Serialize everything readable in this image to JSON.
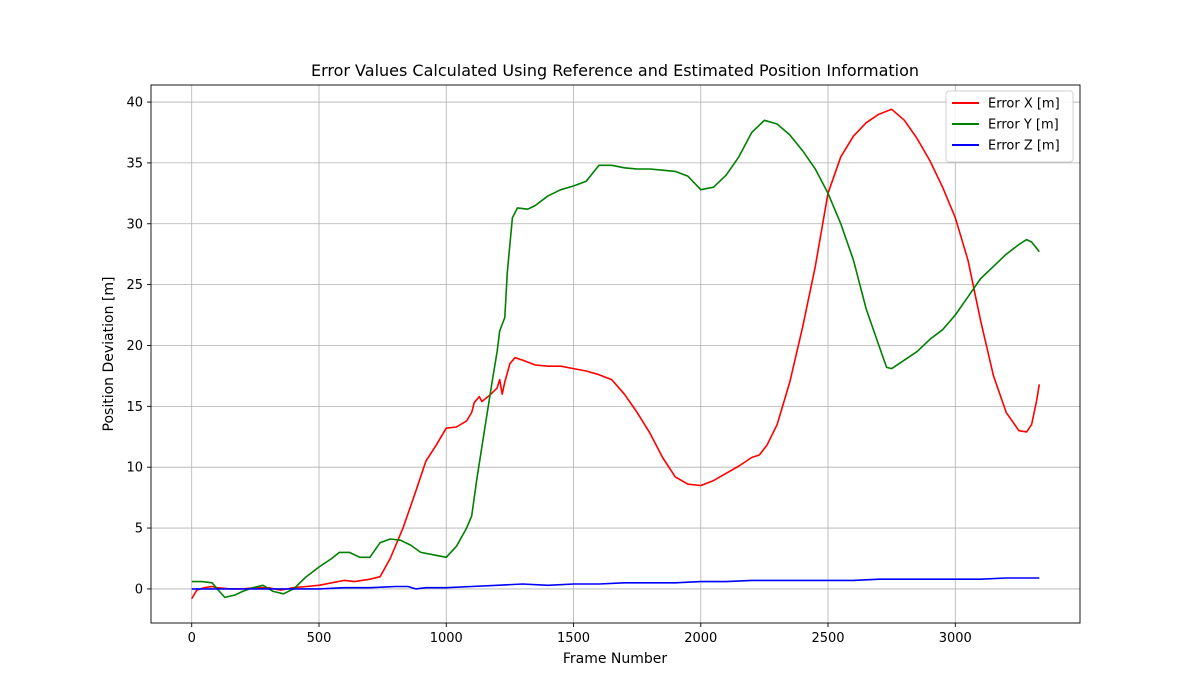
{
  "chart_data": {
    "type": "line",
    "title": "Error Values Calculated Using Reference and Estimated Position Information",
    "xlabel": "Frame Number",
    "ylabel": "Position Deviation [m]",
    "xlim": [
      -160,
      3490
    ],
    "ylim": [
      -2.8,
      41.4
    ],
    "xticks": [
      0,
      500,
      1000,
      1500,
      2000,
      2500,
      3000
    ],
    "yticks": [
      0,
      5,
      10,
      15,
      20,
      25,
      30,
      35,
      40
    ],
    "grid": true,
    "legend_position": "top-right",
    "series": [
      {
        "name": "Error X [m]",
        "color": "#ff0000",
        "points": [
          [
            0,
            -0.8
          ],
          [
            20,
            -0.1
          ],
          [
            50,
            0.1
          ],
          [
            80,
            0.2
          ],
          [
            100,
            0.1
          ],
          [
            150,
            0.0
          ],
          [
            200,
            0.0
          ],
          [
            250,
            0.1
          ],
          [
            300,
            0.1
          ],
          [
            350,
            -0.1
          ],
          [
            400,
            0.1
          ],
          [
            450,
            0.2
          ],
          [
            500,
            0.3
          ],
          [
            550,
            0.5
          ],
          [
            600,
            0.7
          ],
          [
            640,
            0.6
          ],
          [
            700,
            0.8
          ],
          [
            740,
            1.0
          ],
          [
            780,
            2.5
          ],
          [
            830,
            5.0
          ],
          [
            880,
            8.0
          ],
          [
            920,
            10.5
          ],
          [
            960,
            11.8
          ],
          [
            1000,
            13.2
          ],
          [
            1040,
            13.3
          ],
          [
            1080,
            13.8
          ],
          [
            1100,
            14.5
          ],
          [
            1110,
            15.3
          ],
          [
            1130,
            15.8
          ],
          [
            1140,
            15.4
          ],
          [
            1170,
            15.9
          ],
          [
            1200,
            16.5
          ],
          [
            1210,
            17.2
          ],
          [
            1220,
            16.0
          ],
          [
            1230,
            17.0
          ],
          [
            1250,
            18.5
          ],
          [
            1270,
            19.0
          ],
          [
            1300,
            18.8
          ],
          [
            1350,
            18.4
          ],
          [
            1400,
            18.3
          ],
          [
            1450,
            18.3
          ],
          [
            1500,
            18.1
          ],
          [
            1550,
            17.9
          ],
          [
            1600,
            17.6
          ],
          [
            1650,
            17.2
          ],
          [
            1700,
            16.0
          ],
          [
            1750,
            14.5
          ],
          [
            1800,
            12.8
          ],
          [
            1850,
            10.8
          ],
          [
            1900,
            9.2
          ],
          [
            1950,
            8.6
          ],
          [
            2000,
            8.5
          ],
          [
            2050,
            8.9
          ],
          [
            2100,
            9.5
          ],
          [
            2150,
            10.1
          ],
          [
            2200,
            10.8
          ],
          [
            2230,
            11.0
          ],
          [
            2260,
            11.8
          ],
          [
            2300,
            13.5
          ],
          [
            2350,
            17.0
          ],
          [
            2400,
            21.5
          ],
          [
            2450,
            26.5
          ],
          [
            2500,
            32.5
          ],
          [
            2550,
            35.5
          ],
          [
            2600,
            37.2
          ],
          [
            2650,
            38.3
          ],
          [
            2700,
            39.0
          ],
          [
            2750,
            39.4
          ],
          [
            2800,
            38.5
          ],
          [
            2850,
            37.0
          ],
          [
            2900,
            35.2
          ],
          [
            2950,
            33.0
          ],
          [
            3000,
            30.5
          ],
          [
            3050,
            27.0
          ],
          [
            3100,
            22.0
          ],
          [
            3150,
            17.5
          ],
          [
            3200,
            14.5
          ],
          [
            3250,
            13.0
          ],
          [
            3280,
            12.9
          ],
          [
            3300,
            13.5
          ],
          [
            3320,
            15.5
          ],
          [
            3330,
            16.8
          ]
        ]
      },
      {
        "name": "Error Y [m]",
        "color": "#008000",
        "points": [
          [
            0,
            0.6
          ],
          [
            40,
            0.6
          ],
          [
            80,
            0.5
          ],
          [
            100,
            0.0
          ],
          [
            130,
            -0.7
          ],
          [
            170,
            -0.5
          ],
          [
            200,
            -0.2
          ],
          [
            240,
            0.1
          ],
          [
            280,
            0.3
          ],
          [
            320,
            -0.2
          ],
          [
            360,
            -0.4
          ],
          [
            400,
            0.0
          ],
          [
            450,
            1.0
          ],
          [
            500,
            1.8
          ],
          [
            550,
            2.5
          ],
          [
            580,
            3.0
          ],
          [
            620,
            3.0
          ],
          [
            660,
            2.6
          ],
          [
            700,
            2.6
          ],
          [
            740,
            3.8
          ],
          [
            780,
            4.1
          ],
          [
            820,
            4.0
          ],
          [
            860,
            3.6
          ],
          [
            900,
            3.0
          ],
          [
            950,
            2.8
          ],
          [
            1000,
            2.6
          ],
          [
            1040,
            3.5
          ],
          [
            1080,
            5.0
          ],
          [
            1100,
            6.0
          ],
          [
            1120,
            9.0
          ],
          [
            1150,
            13.0
          ],
          [
            1180,
            17.0
          ],
          [
            1200,
            19.5
          ],
          [
            1210,
            21.2
          ],
          [
            1230,
            22.3
          ],
          [
            1240,
            26.0
          ],
          [
            1260,
            30.5
          ],
          [
            1280,
            31.3
          ],
          [
            1320,
            31.2
          ],
          [
            1350,
            31.5
          ],
          [
            1400,
            32.3
          ],
          [
            1450,
            32.8
          ],
          [
            1500,
            33.1
          ],
          [
            1550,
            33.5
          ],
          [
            1600,
            34.8
          ],
          [
            1650,
            34.8
          ],
          [
            1700,
            34.6
          ],
          [
            1750,
            34.5
          ],
          [
            1800,
            34.5
          ],
          [
            1850,
            34.4
          ],
          [
            1900,
            34.3
          ],
          [
            1950,
            33.9
          ],
          [
            2000,
            32.8
          ],
          [
            2050,
            33.0
          ],
          [
            2100,
            34.0
          ],
          [
            2150,
            35.5
          ],
          [
            2200,
            37.5
          ],
          [
            2250,
            38.5
          ],
          [
            2300,
            38.2
          ],
          [
            2350,
            37.3
          ],
          [
            2400,
            36.0
          ],
          [
            2450,
            34.5
          ],
          [
            2500,
            32.5
          ],
          [
            2550,
            30.0
          ],
          [
            2600,
            27.0
          ],
          [
            2650,
            23.0
          ],
          [
            2700,
            20.0
          ],
          [
            2730,
            18.2
          ],
          [
            2750,
            18.1
          ],
          [
            2800,
            18.8
          ],
          [
            2850,
            19.5
          ],
          [
            2900,
            20.5
          ],
          [
            2950,
            21.3
          ],
          [
            3000,
            22.5
          ],
          [
            3050,
            24.0
          ],
          [
            3100,
            25.5
          ],
          [
            3150,
            26.5
          ],
          [
            3200,
            27.5
          ],
          [
            3250,
            28.3
          ],
          [
            3280,
            28.7
          ],
          [
            3300,
            28.5
          ],
          [
            3330,
            27.7
          ]
        ]
      },
      {
        "name": "Error Z [m]",
        "color": "#0000ff",
        "points": [
          [
            0,
            0.0
          ],
          [
            100,
            0.0
          ],
          [
            200,
            0.0
          ],
          [
            300,
            0.0
          ],
          [
            400,
            0.0
          ],
          [
            500,
            0.0
          ],
          [
            600,
            0.1
          ],
          [
            700,
            0.1
          ],
          [
            800,
            0.2
          ],
          [
            850,
            0.2
          ],
          [
            880,
            0.0
          ],
          [
            920,
            0.1
          ],
          [
            1000,
            0.1
          ],
          [
            1100,
            0.2
          ],
          [
            1200,
            0.3
          ],
          [
            1300,
            0.4
          ],
          [
            1400,
            0.3
          ],
          [
            1500,
            0.4
          ],
          [
            1600,
            0.4
          ],
          [
            1700,
            0.5
          ],
          [
            1800,
            0.5
          ],
          [
            1900,
            0.5
          ],
          [
            2000,
            0.6
          ],
          [
            2100,
            0.6
          ],
          [
            2200,
            0.7
          ],
          [
            2300,
            0.7
          ],
          [
            2400,
            0.7
          ],
          [
            2500,
            0.7
          ],
          [
            2600,
            0.7
          ],
          [
            2700,
            0.8
          ],
          [
            2750,
            0.8
          ],
          [
            2800,
            0.8
          ],
          [
            2900,
            0.8
          ],
          [
            3000,
            0.8
          ],
          [
            3100,
            0.8
          ],
          [
            3200,
            0.9
          ],
          [
            3330,
            0.9
          ]
        ]
      }
    ]
  }
}
